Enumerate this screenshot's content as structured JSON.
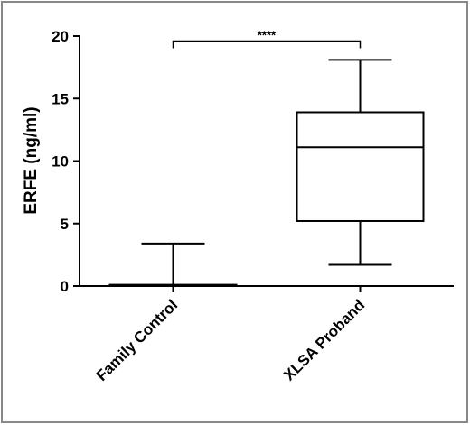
{
  "chart_data": {
    "type": "box",
    "ylabel": "ERFE (ng/ml)",
    "categories": [
      "Family Control",
      "XLSA Proband"
    ],
    "boxes": [
      {
        "min": 0,
        "q1": 0,
        "median": 0,
        "q3": 0.1,
        "max": 3.4
      },
      {
        "min": 1.7,
        "q1": 5.2,
        "median": 11.1,
        "q3": 13.9,
        "max": 18.1
      }
    ],
    "annotation": {
      "text": "****",
      "y": 19.6
    },
    "ylim": [
      0,
      20
    ],
    "yticks": [
      0,
      5,
      10,
      15,
      20
    ],
    "color": "#000000"
  }
}
